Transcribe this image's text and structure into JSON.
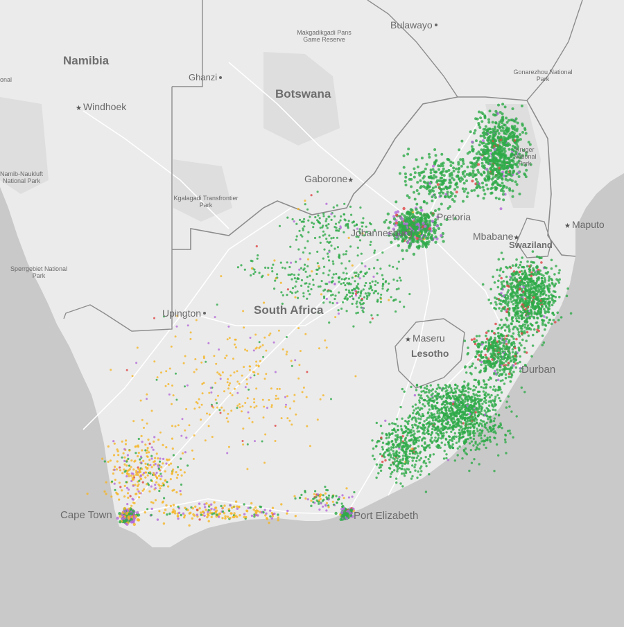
{
  "map": {
    "countries": [
      {
        "key": "namibia",
        "name": "Namibia"
      },
      {
        "key": "botswana",
        "name": "Botswana"
      },
      {
        "key": "south_africa",
        "name": "South Africa"
      },
      {
        "key": "lesotho",
        "name": "Lesotho"
      },
      {
        "key": "swaziland",
        "name": "Swaziland"
      }
    ],
    "cities": [
      {
        "key": "bulawayo",
        "name": "Bulawayo",
        "marker": "dot"
      },
      {
        "key": "windhoek",
        "name": "Windhoek",
        "marker": "star"
      },
      {
        "key": "ghanzi",
        "name": "Ghanzi",
        "marker": "dot"
      },
      {
        "key": "gaborone",
        "name": "Gaborone",
        "marker": "star"
      },
      {
        "key": "maputo",
        "name": "Maputo",
        "marker": "star"
      },
      {
        "key": "mbabane",
        "name": "Mbabane",
        "marker": "star"
      },
      {
        "key": "pretoria",
        "name": "Pretoria",
        "marker": "dot"
      },
      {
        "key": "johannesburg",
        "name": "Johannesburg",
        "marker": "dot"
      },
      {
        "key": "upington",
        "name": "Upington",
        "marker": "dot"
      },
      {
        "key": "maseru",
        "name": "Maseru",
        "marker": "star"
      },
      {
        "key": "durban",
        "name": "Durban",
        "marker": "dot"
      },
      {
        "key": "cape_town",
        "name": "Cape Town",
        "marker": "dot"
      },
      {
        "key": "port_elizabeth",
        "name": "Port Elizabeth",
        "marker": "dot"
      }
    ],
    "parks": [
      {
        "key": "makgadikgadi",
        "name": "Makgadikgadi Pans Game Reserve"
      },
      {
        "key": "gonarezhou",
        "name": "Gonarezhou National Park"
      },
      {
        "key": "kruger",
        "name": "Kruger National Park"
      },
      {
        "key": "kgalagadi",
        "name": "Kgalagadi Transfrontier Park"
      },
      {
        "key": "namib",
        "name": "Namib-Naukluft National Park"
      },
      {
        "key": "sperrgebiet",
        "name": "Sperrgebiet National Park"
      },
      {
        "key": "edge_label",
        "name": "onal"
      }
    ],
    "colors": {
      "ocean": "#c9c9c9",
      "land": "#ebebeb",
      "protected_area": "#dedede",
      "roads": "#ffffff",
      "borders": "#8c8c8c",
      "green": "#2eaa48",
      "orange": "#f5b526",
      "purple": "#b46ad9",
      "red": "#e04545"
    },
    "point_categories": [
      "green",
      "orange",
      "purple",
      "red"
    ]
  }
}
